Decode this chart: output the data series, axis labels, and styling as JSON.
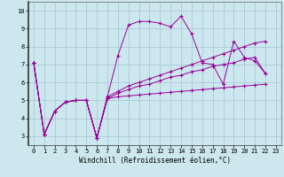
{
  "xlabel": "Windchill (Refroidissement éolien,°C)",
  "background_color": "#cce8ee",
  "line_color": "#990099",
  "xlim": [
    -0.5,
    23.5
  ],
  "ylim": [
    2.5,
    10.5
  ],
  "yticks": [
    3,
    4,
    5,
    6,
    7,
    8,
    9,
    10
  ],
  "xticks": [
    0,
    1,
    2,
    3,
    4,
    5,
    6,
    7,
    8,
    9,
    10,
    11,
    12,
    13,
    14,
    15,
    16,
    17,
    18,
    19,
    20,
    21,
    22,
    23
  ],
  "series": [
    [
      7.1,
      3.1,
      4.4,
      4.9,
      5.0,
      5.0,
      2.9,
      5.2,
      7.5,
      9.2,
      9.4,
      9.4,
      9.3,
      9.1,
      9.7,
      8.7,
      7.1,
      7.0,
      5.9,
      8.3,
      7.4,
      7.2,
      6.5
    ],
    [
      7.1,
      3.1,
      4.4,
      4.9,
      5.0,
      5.0,
      2.9,
      5.1,
      5.2,
      5.25,
      5.3,
      5.35,
      5.4,
      5.45,
      5.5,
      5.55,
      5.6,
      5.65,
      5.7,
      5.75,
      5.8,
      5.85,
      5.9
    ],
    [
      7.1,
      3.1,
      4.4,
      4.9,
      5.0,
      5.0,
      2.9,
      5.1,
      5.4,
      5.6,
      5.8,
      5.9,
      6.1,
      6.3,
      6.4,
      6.6,
      6.7,
      6.9,
      7.0,
      7.1,
      7.3,
      7.4,
      6.5
    ],
    [
      7.1,
      3.1,
      4.4,
      4.9,
      5.0,
      5.0,
      2.9,
      5.2,
      5.5,
      5.8,
      6.0,
      6.2,
      6.4,
      6.6,
      6.8,
      7.0,
      7.2,
      7.4,
      7.6,
      7.8,
      8.0,
      8.2,
      8.3
    ]
  ]
}
